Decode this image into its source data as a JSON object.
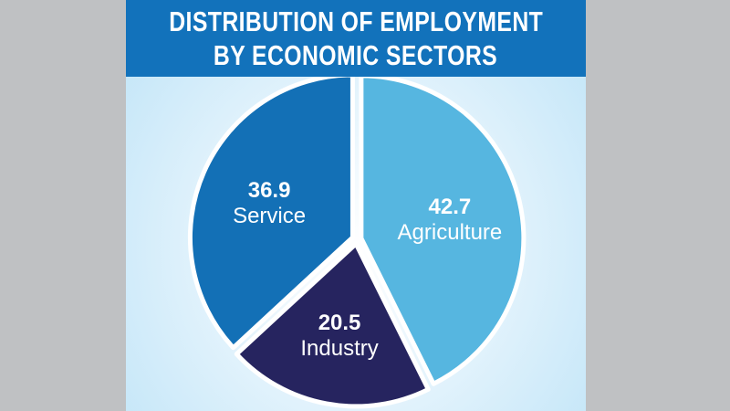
{
  "header": {
    "title_line1": "DISTRIBUTION OF EMPLOYMENT",
    "title_line2": "BY ECONOMIC SECTORS"
  },
  "colors": {
    "header_bg": "#1272bb",
    "agriculture": "#56b6e0",
    "industry": "#26245f",
    "service": "#1370b6",
    "separator": "#ffffff"
  },
  "chart_data": {
    "type": "pie",
    "title": "DISTRIBUTION OF EMPLOYMENT BY ECONOMIC SECTORS",
    "slices": [
      {
        "label": "Agriculture",
        "value": 42.7,
        "value_text": "42.7",
        "color": "#56b6e0"
      },
      {
        "label": "Industry",
        "value": 20.5,
        "value_text": "20.5",
        "color": "#26245f"
      },
      {
        "label": "Service",
        "value": 36.9,
        "value_text": "36.9",
        "color": "#1370b6"
      }
    ],
    "legend": "none"
  }
}
